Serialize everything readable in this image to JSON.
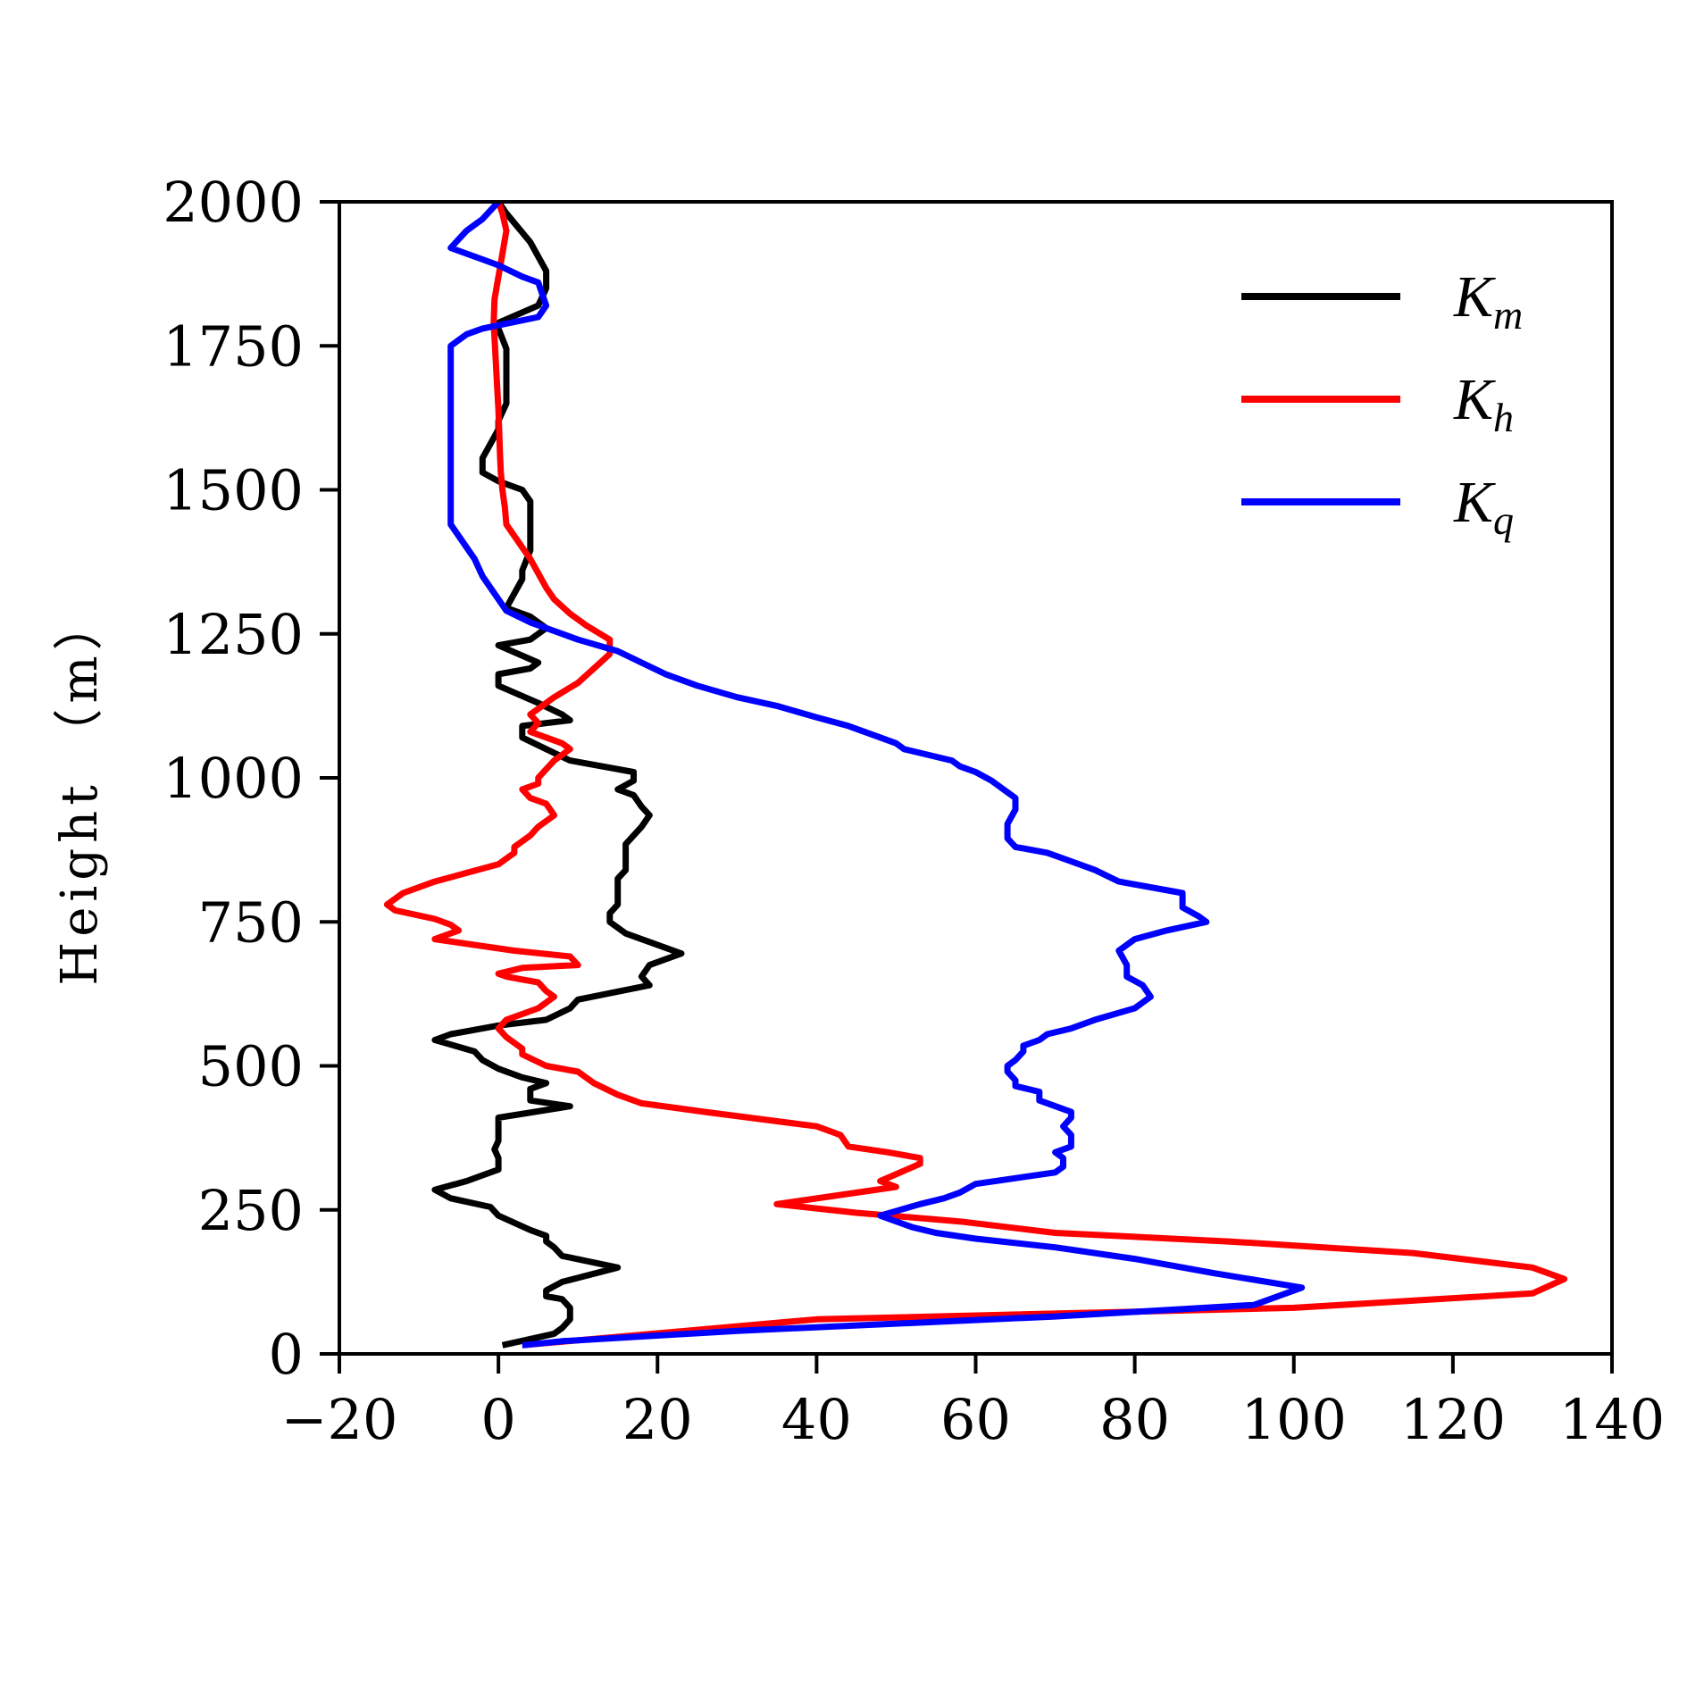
{
  "chart_data": {
    "type": "line",
    "title": "",
    "xlabel": "",
    "ylabel": "Height (m)",
    "ylabel_display": "Height （m）",
    "xlim": [
      -20,
      140
    ],
    "ylim": [
      0,
      2000
    ],
    "xticks": [
      -20,
      0,
      20,
      40,
      60,
      80,
      100,
      120,
      140
    ],
    "yticks": [
      0,
      250,
      500,
      750,
      1000,
      1250,
      1500,
      1750,
      2000
    ],
    "xtick_labels": [
      "−20",
      "0",
      "20",
      "40",
      "60",
      "80",
      "100",
      "120",
      "140"
    ],
    "ytick_labels": [
      "0",
      "250",
      "500",
      "750",
      "1000",
      "1250",
      "1500",
      "1750",
      "2000"
    ],
    "grid": false,
    "legend_position": "top-right",
    "series": [
      {
        "name": "Km",
        "label_main": "K",
        "label_sub": "m",
        "color": "#000000",
        "points": [
          [
            0.5,
            15
          ],
          [
            7,
            35
          ],
          [
            8,
            45
          ],
          [
            9,
            60
          ],
          [
            9,
            80
          ],
          [
            8,
            95
          ],
          [
            6,
            100
          ],
          [
            6,
            110
          ],
          [
            8,
            125
          ],
          [
            15,
            150
          ],
          [
            8,
            170
          ],
          [
            7,
            185
          ],
          [
            6,
            195
          ],
          [
            6,
            205
          ],
          [
            4,
            215
          ],
          [
            0,
            240
          ],
          [
            -1,
            255
          ],
          [
            -6,
            270
          ],
          [
            -8,
            285
          ],
          [
            -4,
            300
          ],
          [
            0,
            320
          ],
          [
            0,
            340
          ],
          [
            -0.5,
            355
          ],
          [
            0,
            370
          ],
          [
            0,
            380
          ],
          [
            0,
            400
          ],
          [
            0,
            410
          ],
          [
            9,
            430
          ],
          [
            4,
            440
          ],
          [
            4,
            460
          ],
          [
            6,
            470
          ],
          [
            3,
            480
          ],
          [
            0,
            495
          ],
          [
            -2,
            510
          ],
          [
            -3,
            525
          ],
          [
            -8,
            545
          ],
          [
            -6,
            555
          ],
          [
            0,
            570
          ],
          [
            6,
            580
          ],
          [
            9,
            600
          ],
          [
            10,
            615
          ],
          [
            19,
            640
          ],
          [
            18,
            655
          ],
          [
            19,
            675
          ],
          [
            23,
            695
          ],
          [
            16,
            730
          ],
          [
            14,
            750
          ],
          [
            14,
            765
          ],
          [
            15,
            780
          ],
          [
            15,
            800
          ],
          [
            15,
            825
          ],
          [
            16,
            840
          ],
          [
            16,
            860
          ],
          [
            16,
            885
          ],
          [
            18,
            915
          ],
          [
            19,
            935
          ],
          [
            18,
            950
          ],
          [
            17,
            970
          ],
          [
            15,
            980
          ],
          [
            17,
            995
          ],
          [
            17,
            1010
          ],
          [
            9,
            1030
          ],
          [
            6,
            1050
          ],
          [
            3,
            1070
          ],
          [
            3,
            1090
          ],
          [
            9,
            1100
          ],
          [
            8,
            1110
          ],
          [
            5,
            1130
          ],
          [
            0,
            1160
          ],
          [
            0,
            1180
          ],
          [
            4,
            1190
          ],
          [
            5,
            1200
          ],
          [
            0,
            1230
          ],
          [
            4,
            1240
          ],
          [
            6,
            1260
          ],
          [
            4,
            1280
          ],
          [
            1,
            1295
          ],
          [
            2,
            1320
          ],
          [
            3,
            1345
          ],
          [
            3,
            1360
          ],
          [
            4,
            1395
          ],
          [
            4,
            1430
          ],
          [
            4,
            1450
          ],
          [
            4,
            1480
          ],
          [
            3,
            1500
          ],
          [
            0,
            1515
          ],
          [
            -2,
            1530
          ],
          [
            -2,
            1555
          ],
          [
            -1,
            1580
          ],
          [
            0,
            1605
          ],
          [
            0,
            1620
          ],
          [
            1,
            1650
          ],
          [
            1,
            1695
          ],
          [
            1,
            1745
          ],
          [
            0,
            1780
          ],
          [
            0,
            1790
          ],
          [
            5,
            1820
          ],
          [
            6,
            1850
          ],
          [
            6,
            1880
          ],
          [
            4,
            1930
          ],
          [
            1,
            1980
          ],
          [
            0,
            2000
          ]
        ]
      },
      {
        "name": "Kh",
        "label_main": "K",
        "label_sub": "h",
        "color": "#ff0000",
        "points": [
          [
            3,
            15
          ],
          [
            40,
            60
          ],
          [
            100,
            80
          ],
          [
            130,
            105
          ],
          [
            134,
            130
          ],
          [
            130,
            150
          ],
          [
            115,
            175
          ],
          [
            92,
            195
          ],
          [
            70,
            210
          ],
          [
            58,
            230
          ],
          [
            45,
            245
          ],
          [
            35,
            260
          ],
          [
            50,
            290
          ],
          [
            48,
            300
          ],
          [
            53,
            330
          ],
          [
            53,
            340
          ],
          [
            49,
            350
          ],
          [
            44,
            360
          ],
          [
            43,
            380
          ],
          [
            40,
            395
          ],
          [
            26,
            420
          ],
          [
            18,
            435
          ],
          [
            15,
            450
          ],
          [
            12,
            470
          ],
          [
            10,
            490
          ],
          [
            6,
            500
          ],
          [
            3,
            520
          ],
          [
            3,
            530
          ],
          [
            1,
            550
          ],
          [
            0,
            565
          ],
          [
            1,
            580
          ],
          [
            5,
            600
          ],
          [
            7,
            620
          ],
          [
            6,
            630
          ],
          [
            5,
            645
          ],
          [
            3,
            650
          ],
          [
            1,
            655
          ],
          [
            0,
            660
          ],
          [
            3,
            670
          ],
          [
            10,
            675
          ],
          [
            9,
            690
          ],
          [
            2,
            700
          ],
          [
            -8,
            720
          ],
          [
            -5,
            735
          ],
          [
            -6,
            745
          ],
          [
            -8,
            755
          ],
          [
            -13,
            770
          ],
          [
            -14,
            780
          ],
          [
            -13,
            790
          ],
          [
            -12,
            800
          ],
          [
            -8,
            820
          ],
          [
            -4,
            835
          ],
          [
            0,
            850
          ],
          [
            2,
            870
          ],
          [
            2,
            880
          ],
          [
            3,
            890
          ],
          [
            4,
            900
          ],
          [
            5,
            915
          ],
          [
            7,
            935
          ],
          [
            6,
            955
          ],
          [
            4,
            965
          ],
          [
            3,
            980
          ],
          [
            5,
            990
          ],
          [
            5,
            1000
          ],
          [
            6,
            1015
          ],
          [
            7,
            1030
          ],
          [
            8,
            1040
          ],
          [
            9,
            1050
          ],
          [
            8,
            1060
          ],
          [
            6,
            1070
          ],
          [
            4,
            1080
          ],
          [
            5,
            1095
          ],
          [
            4,
            1110
          ],
          [
            5,
            1120
          ],
          [
            7,
            1140
          ],
          [
            10,
            1165
          ],
          [
            12,
            1190
          ],
          [
            14,
            1215
          ],
          [
            14,
            1240
          ],
          [
            11,
            1265
          ],
          [
            9,
            1285
          ],
          [
            7,
            1310
          ],
          [
            6,
            1330
          ],
          [
            5,
            1355
          ],
          [
            4,
            1380
          ],
          [
            3,
            1400
          ],
          [
            2,
            1420
          ],
          [
            1,
            1440
          ],
          [
            0.8,
            1470
          ],
          [
            0.5,
            1500
          ],
          [
            0.3,
            1530
          ],
          [
            0.2,
            1560
          ],
          [
            0.1,
            1600
          ],
          [
            0,
            1640
          ],
          [
            -0.2,
            1690
          ],
          [
            -0.4,
            1740
          ],
          [
            -0.6,
            1790
          ],
          [
            -0.5,
            1830
          ],
          [
            0,
            1870
          ],
          [
            0.5,
            1910
          ],
          [
            1,
            1950
          ],
          [
            0.5,
            1980
          ],
          [
            0,
            2000
          ]
        ]
      },
      {
        "name": "Kq",
        "label_main": "K",
        "label_sub": "q",
        "color": "#0000ff",
        "points": [
          [
            3,
            15
          ],
          [
            8,
            22
          ],
          [
            30,
            40
          ],
          [
            70,
            65
          ],
          [
            95,
            85
          ],
          [
            98,
            100
          ],
          [
            101,
            115
          ],
          [
            90,
            140
          ],
          [
            80,
            165
          ],
          [
            70,
            185
          ],
          [
            60,
            200
          ],
          [
            55,
            210
          ],
          [
            52,
            220
          ],
          [
            48,
            240
          ],
          [
            53,
            260
          ],
          [
            56,
            270
          ],
          [
            58,
            280
          ],
          [
            60,
            295
          ],
          [
            70,
            315
          ],
          [
            71,
            325
          ],
          [
            71,
            340
          ],
          [
            70,
            350
          ],
          [
            72,
            360
          ],
          [
            72,
            380
          ],
          [
            71,
            395
          ],
          [
            72,
            410
          ],
          [
            72,
            420
          ],
          [
            68,
            440
          ],
          [
            68,
            455
          ],
          [
            65,
            465
          ],
          [
            65,
            475
          ],
          [
            64,
            490
          ],
          [
            64,
            500
          ],
          [
            65,
            510
          ],
          [
            66,
            525
          ],
          [
            66,
            535
          ],
          [
            68,
            545
          ],
          [
            69,
            555
          ],
          [
            72,
            565
          ],
          [
            75,
            580
          ],
          [
            80,
            600
          ],
          [
            82,
            620
          ],
          [
            81,
            640
          ],
          [
            79,
            655
          ],
          [
            79,
            675
          ],
          [
            78,
            700
          ],
          [
            80,
            720
          ],
          [
            84,
            735
          ],
          [
            89,
            750
          ],
          [
            88,
            760
          ],
          [
            86,
            775
          ],
          [
            86,
            800
          ],
          [
            78,
            820
          ],
          [
            75,
            840
          ],
          [
            72,
            855
          ],
          [
            69,
            870
          ],
          [
            65,
            880
          ],
          [
            64,
            895
          ],
          [
            64,
            920
          ],
          [
            65,
            945
          ],
          [
            65,
            965
          ],
          [
            63,
            985
          ],
          [
            62,
            995
          ],
          [
            60,
            1010
          ],
          [
            58,
            1020
          ],
          [
            57,
            1030
          ],
          [
            51,
            1050
          ],
          [
            50,
            1060
          ],
          [
            48,
            1070
          ],
          [
            44,
            1090
          ],
          [
            40,
            1105
          ],
          [
            35,
            1125
          ],
          [
            30,
            1140
          ],
          [
            25,
            1160
          ],
          [
            21,
            1180
          ],
          [
            18,
            1200
          ],
          [
            15,
            1220
          ],
          [
            10,
            1240
          ],
          [
            7,
            1255
          ],
          [
            4,
            1270
          ],
          [
            1,
            1290
          ],
          [
            0,
            1310
          ],
          [
            -1,
            1330
          ],
          [
            -2,
            1350
          ],
          [
            -3,
            1380
          ],
          [
            -4,
            1400
          ],
          [
            -5,
            1420
          ],
          [
            -6,
            1440
          ],
          [
            -6,
            1460
          ],
          [
            -6,
            1480
          ],
          [
            -6,
            1500
          ],
          [
            -6,
            1520
          ],
          [
            -6,
            1540
          ],
          [
            -6,
            1560
          ],
          [
            -6,
            1580
          ],
          [
            -6,
            1620
          ],
          [
            -6,
            1650
          ],
          [
            -6,
            1680
          ],
          [
            -6,
            1700
          ],
          [
            -6,
            1720
          ],
          [
            -6,
            1750
          ],
          [
            -4,
            1770
          ],
          [
            -2,
            1780
          ],
          [
            5,
            1800
          ],
          [
            6,
            1820
          ],
          [
            5,
            1860
          ],
          [
            3,
            1870
          ],
          [
            0,
            1890
          ],
          [
            -2,
            1900
          ],
          [
            -6,
            1920
          ],
          [
            -4,
            1950
          ],
          [
            -2,
            1970
          ],
          [
            0,
            2000
          ]
        ]
      }
    ]
  }
}
